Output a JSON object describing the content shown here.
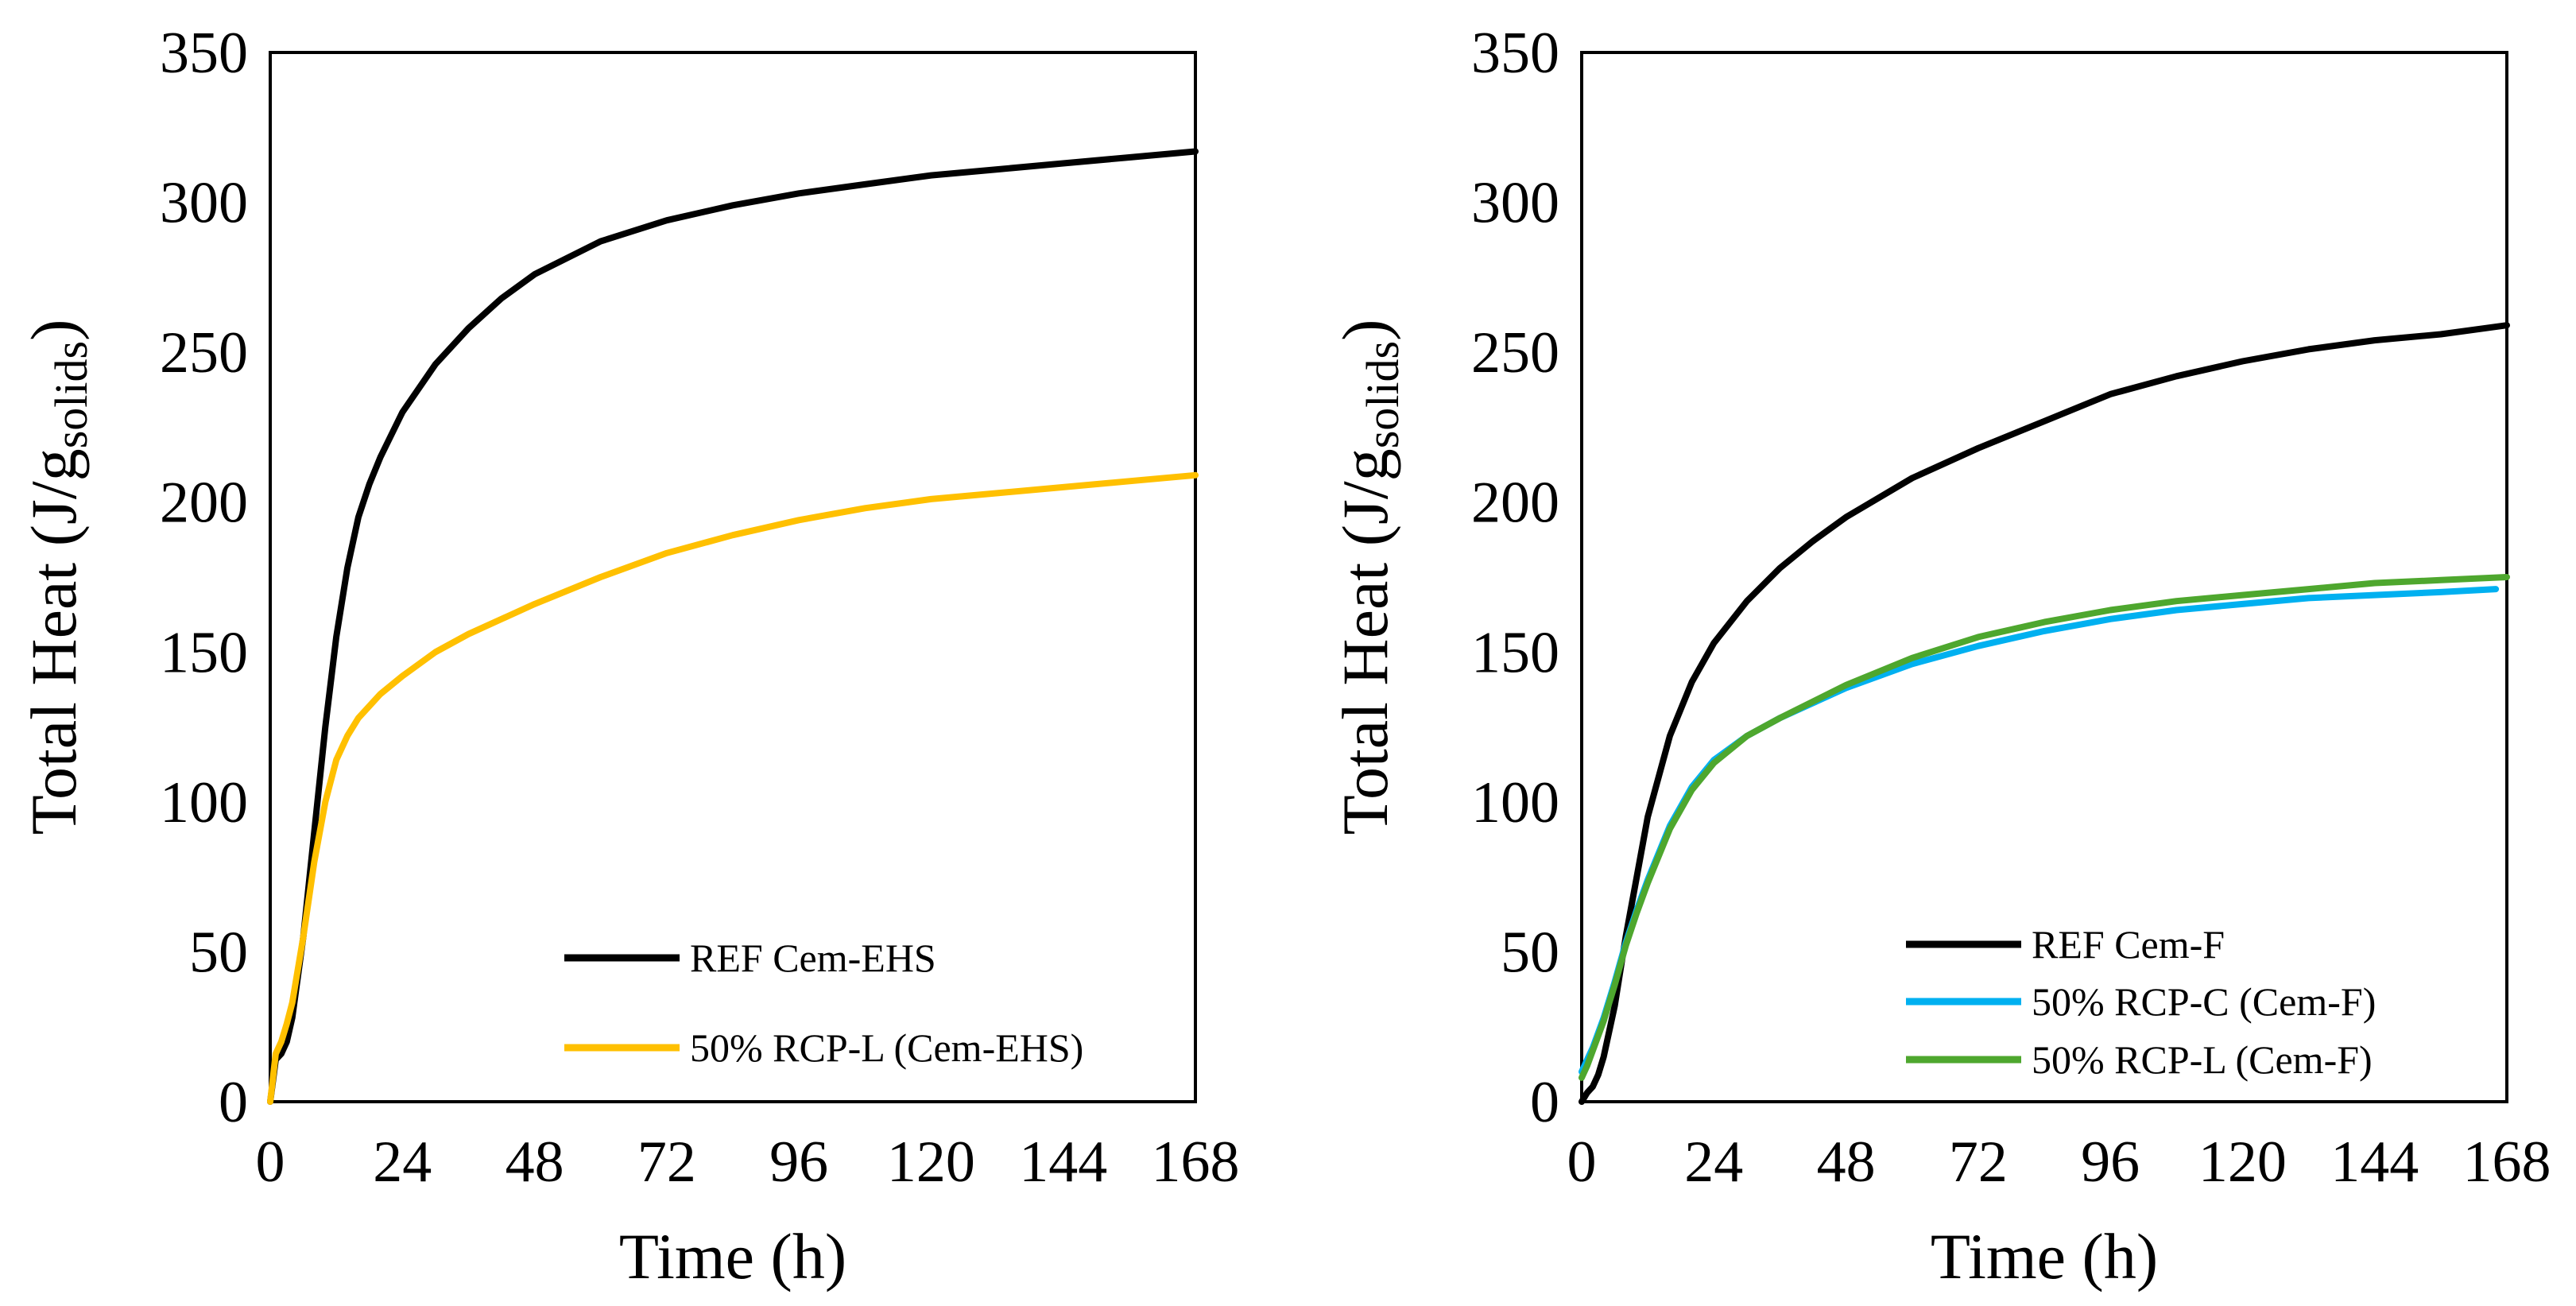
{
  "chart_data": [
    {
      "type": "line",
      "xlabel": "Time (h)",
      "ylabel_main": "Total Heat (J/g",
      "ylabel_sub": "solids",
      "ylabel_close": ")",
      "xlim": [
        0,
        168
      ],
      "ylim": [
        0,
        350
      ],
      "xticks": [
        0,
        24,
        48,
        72,
        96,
        120,
        144,
        168
      ],
      "yticks": [
        0,
        50,
        100,
        150,
        200,
        250,
        300,
        350
      ],
      "legend_position": "bottom-right",
      "series": [
        {
          "name": "REF Cem-EHS",
          "color": "#000000",
          "x": [
            0,
            1,
            2,
            3,
            4,
            6,
            8,
            10,
            12,
            14,
            16,
            18,
            20,
            24,
            30,
            36,
            42,
            48,
            60,
            72,
            84,
            96,
            108,
            120,
            132,
            144,
            156,
            168
          ],
          "y": [
            0,
            14,
            16,
            20,
            28,
            55,
            90,
            125,
            155,
            178,
            195,
            206,
            215,
            230,
            246,
            258,
            268,
            276,
            287,
            294,
            299,
            303,
            306,
            309,
            311,
            313,
            315,
            317
          ]
        },
        {
          "name": "50% RCP-L (Cem-EHS)",
          "color": "#FFC000",
          "x": [
            0,
            1,
            2,
            3,
            4,
            6,
            8,
            10,
            12,
            14,
            16,
            20,
            24,
            30,
            36,
            48,
            60,
            72,
            84,
            96,
            108,
            120,
            132,
            144,
            156,
            168
          ],
          "y": [
            0,
            16,
            20,
            26,
            33,
            55,
            80,
            100,
            114,
            122,
            128,
            136,
            142,
            150,
            156,
            166,
            175,
            183,
            189,
            194,
            198,
            201,
            203,
            205,
            207,
            209
          ]
        }
      ]
    },
    {
      "type": "line",
      "xlabel": "Time (h)",
      "ylabel_main": "Total Heat (J/g",
      "ylabel_sub": "solids",
      "ylabel_close": ")",
      "xlim": [
        0,
        168
      ],
      "ylim": [
        0,
        350
      ],
      "xticks": [
        0,
        24,
        48,
        72,
        96,
        120,
        144,
        168
      ],
      "yticks": [
        0,
        50,
        100,
        150,
        200,
        250,
        300,
        350
      ],
      "legend_position": "bottom-right",
      "series": [
        {
          "name": "REF Cem-F",
          "color": "#000000",
          "x": [
            0,
            1,
            2,
            3,
            4,
            6,
            8,
            10,
            12,
            16,
            20,
            24,
            30,
            36,
            42,
            48,
            60,
            72,
            84,
            96,
            108,
            120,
            132,
            144,
            156,
            168
          ],
          "y": [
            0,
            3,
            5,
            9,
            15,
            32,
            55,
            75,
            95,
            122,
            140,
            153,
            167,
            178,
            187,
            195,
            208,
            218,
            227,
            236,
            242,
            247,
            251,
            254,
            256,
            259
          ]
        },
        {
          "name": "50% RCP-C (Cem-F)",
          "color": "#00B0F0",
          "x": [
            0,
            1,
            2,
            4,
            6,
            8,
            10,
            12,
            16,
            20,
            24,
            30,
            36,
            48,
            60,
            72,
            84,
            96,
            108,
            120,
            132,
            144,
            156,
            166
          ],
          "y": [
            10,
            14,
            18,
            28,
            40,
            53,
            64,
            74,
            92,
            105,
            114,
            122,
            128,
            138,
            146,
            152,
            157,
            161,
            164,
            166,
            168,
            169,
            170,
            171
          ]
        },
        {
          "name": "50% RCP-L (Cem-F)",
          "color": "#4EA72E",
          "x": [
            0,
            1,
            2,
            4,
            6,
            8,
            10,
            12,
            16,
            20,
            24,
            30,
            36,
            48,
            60,
            72,
            84,
            96,
            108,
            120,
            132,
            144,
            156,
            168
          ],
          "y": [
            8,
            12,
            17,
            27,
            39,
            52,
            63,
            73,
            91,
            104,
            113,
            122,
            128,
            139,
            148,
            155,
            160,
            164,
            167,
            169,
            171,
            173,
            174,
            175
          ]
        }
      ]
    }
  ]
}
